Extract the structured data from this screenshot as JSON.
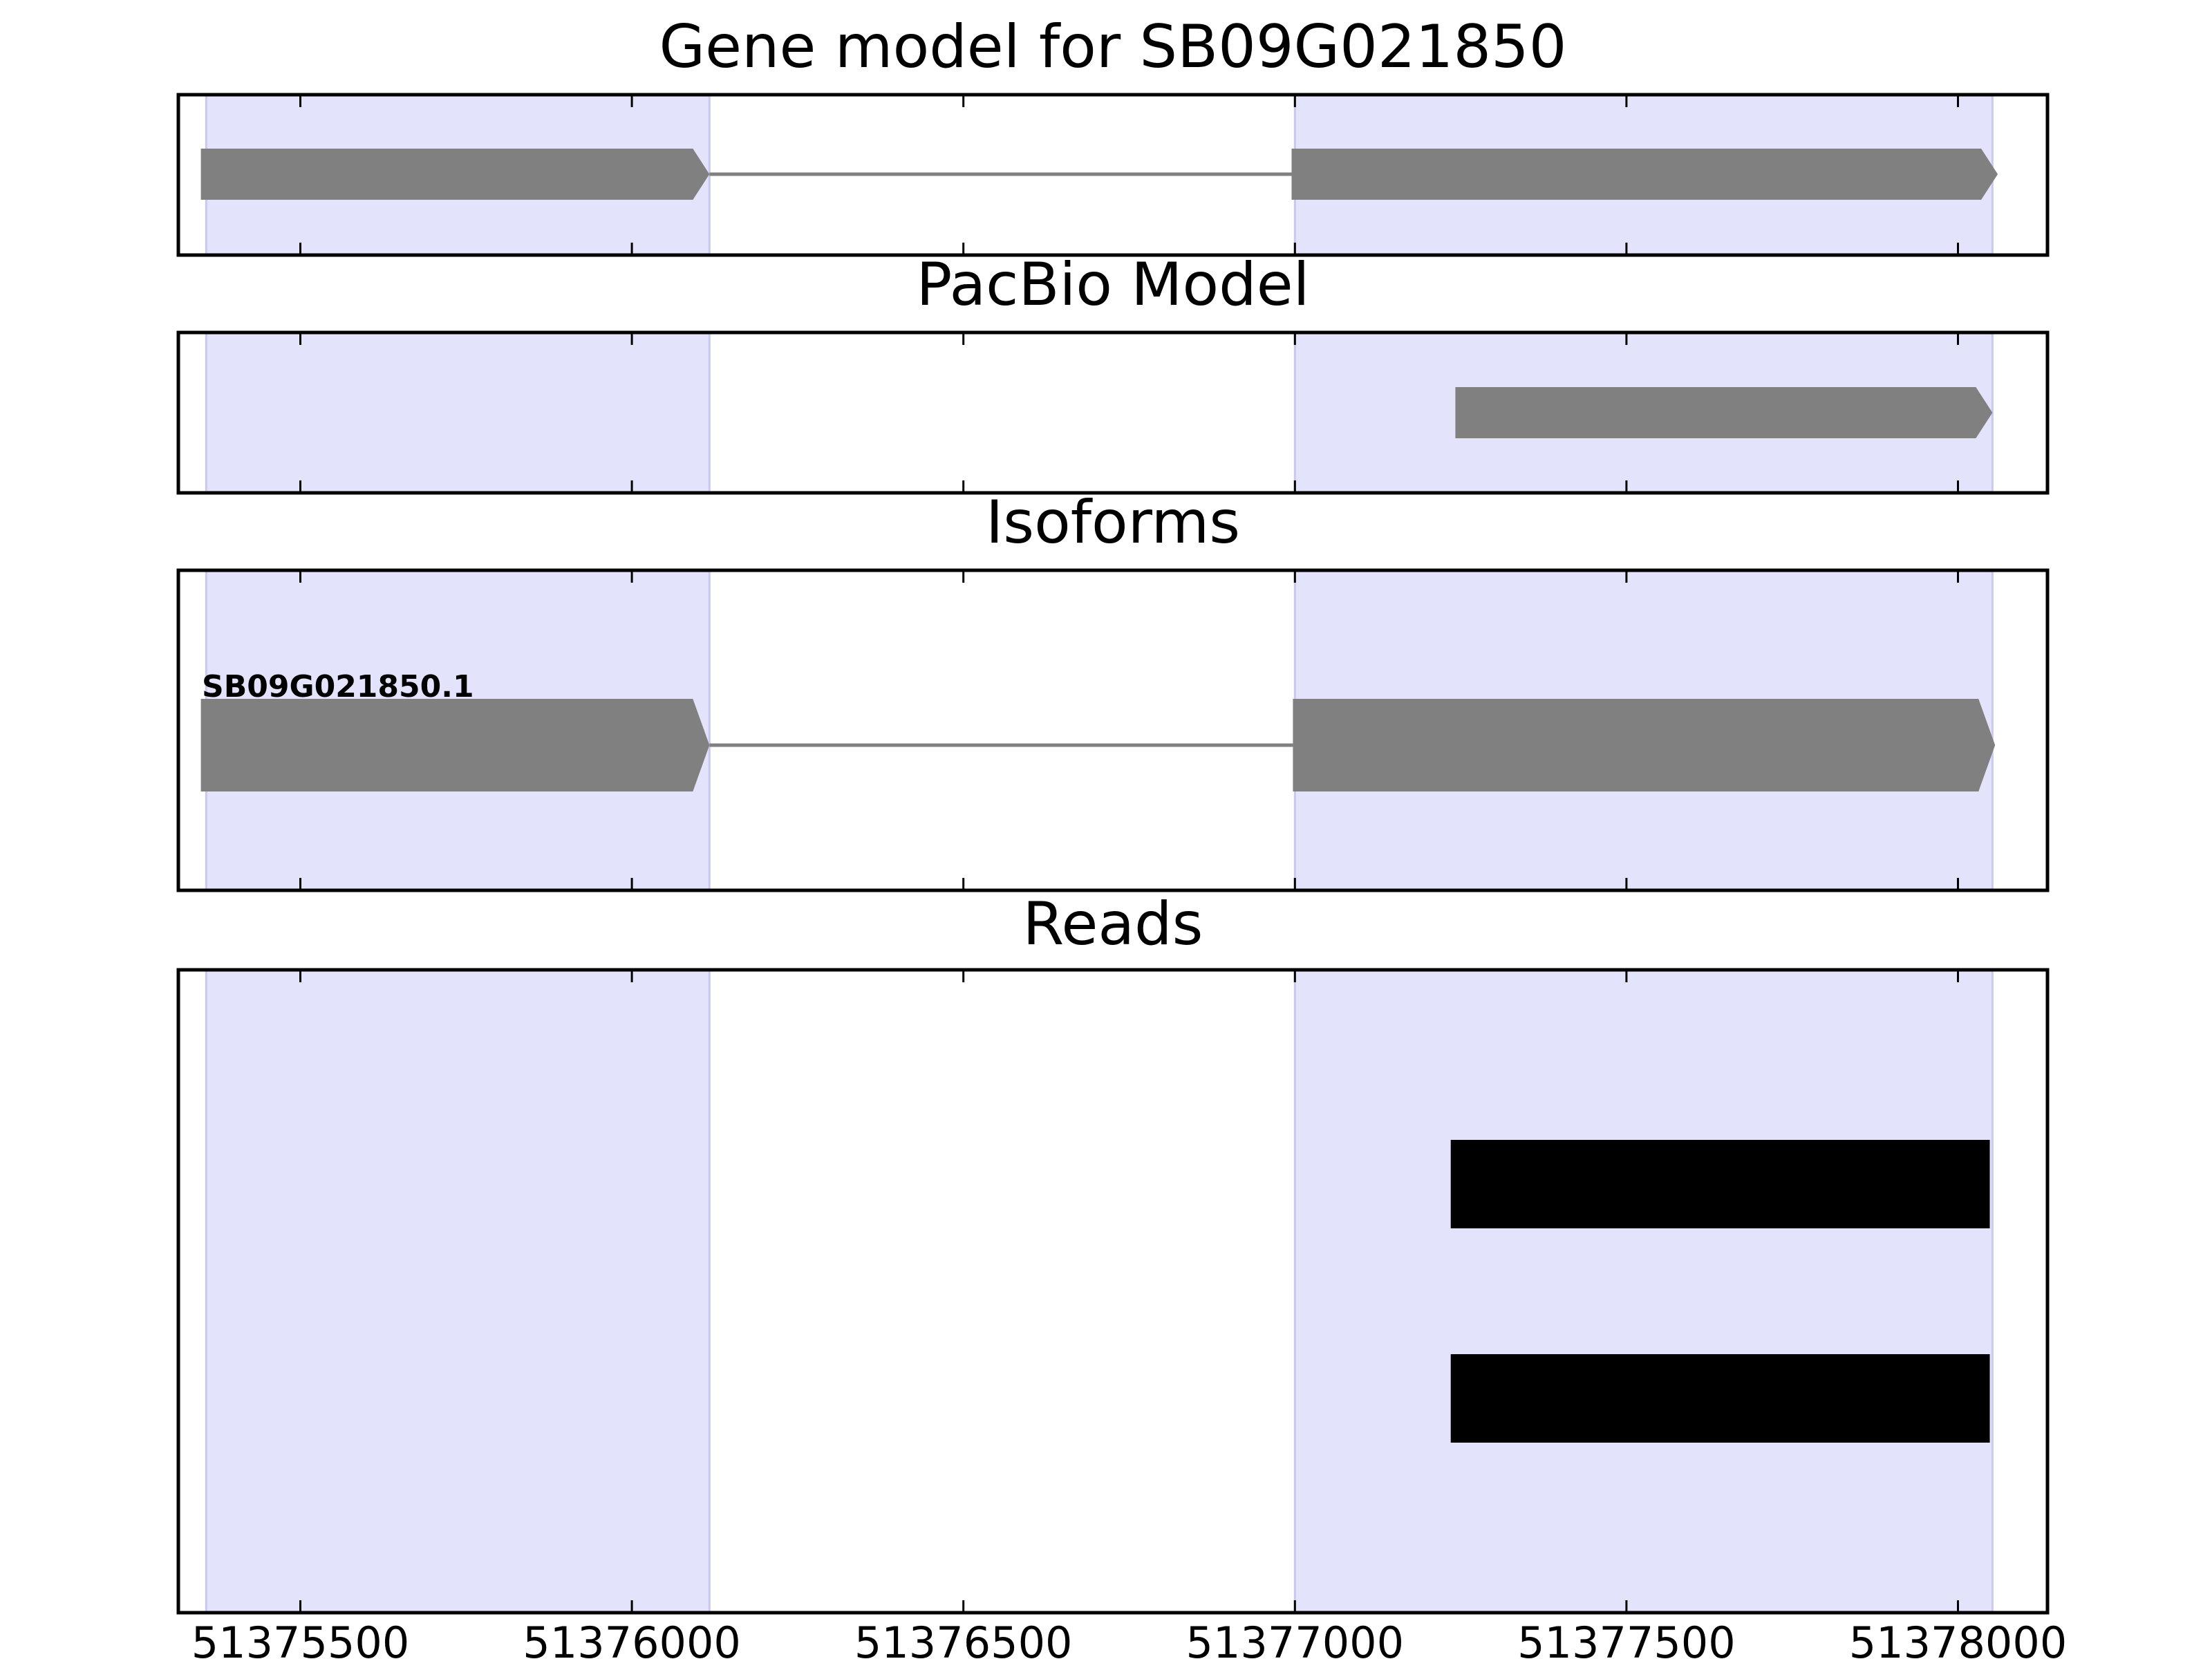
{
  "chart_data": {
    "type": "gene-track",
    "xlim": [
      51375316,
      51378135
    ],
    "xticks": [
      51375500,
      51376000,
      51376500,
      51377000,
      51377500,
      51378000
    ],
    "xtick_labels": [
      "51375500",
      "51376000",
      "51376500",
      "51377000",
      "51377500",
      "51378000"
    ],
    "exon_regions": [
      [
        51375358,
        51376117
      ],
      [
        51377000,
        51378052
      ]
    ],
    "panels": [
      {
        "title": "Gene model for SB09G021850",
        "features": [
          {
            "type": "exon",
            "start": 51375350,
            "end": 51376117
          },
          {
            "type": "exon",
            "start": 51376995,
            "end": 51378060
          }
        ],
        "introns": [
          [
            51376117,
            51376995
          ]
        ]
      },
      {
        "title": "PacBio Model",
        "features": [
          {
            "type": "exon",
            "start": 51377242,
            "end": 51378052
          }
        ],
        "introns": []
      },
      {
        "title": "Isoforms",
        "isoform_label": "SB09G021850.1",
        "features": [
          {
            "type": "exon",
            "start": 51375350,
            "end": 51376117
          },
          {
            "type": "exon",
            "start": 51376997,
            "end": 51378056
          }
        ],
        "introns": [
          [
            51376117,
            51376997
          ]
        ]
      },
      {
        "title": "Reads",
        "reads": [
          {
            "start": 51377235,
            "end": 51378048
          },
          {
            "start": 51377235,
            "end": 51378048
          }
        ]
      }
    ]
  },
  "colors": {
    "exon_region": "#e3e3fc",
    "exon_region_edge": "#c9c9ef",
    "feature": "#808080",
    "read": "#000000",
    "axis": "#000000"
  }
}
